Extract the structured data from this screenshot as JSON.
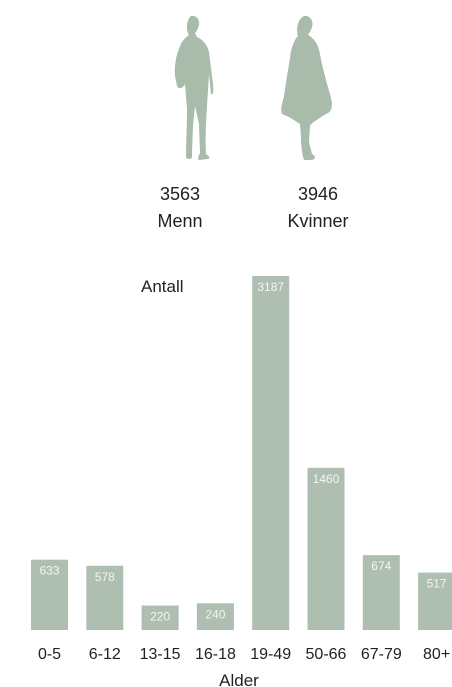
{
  "summary": {
    "men": {
      "count": "3563",
      "label": "Menn"
    },
    "women": {
      "count": "3946",
      "label": "Kvinner"
    }
  },
  "icons": {
    "men": "man-silhouette-icon",
    "women": "woman-silhouette-icon"
  },
  "colors": {
    "bar": "#aebfb1",
    "silhouette": "#a9bcab",
    "bar_label": "#f2f5f2"
  },
  "chart_data": {
    "type": "bar",
    "categories": [
      "0-5",
      "6-12",
      "13-15",
      "16-18",
      "19-49",
      "50-66",
      "67-79",
      "80+"
    ],
    "values": [
      633,
      578,
      220,
      240,
      3187,
      1460,
      674,
      517
    ],
    "ylabel": "Antall",
    "xlabel": "Alder"
  }
}
